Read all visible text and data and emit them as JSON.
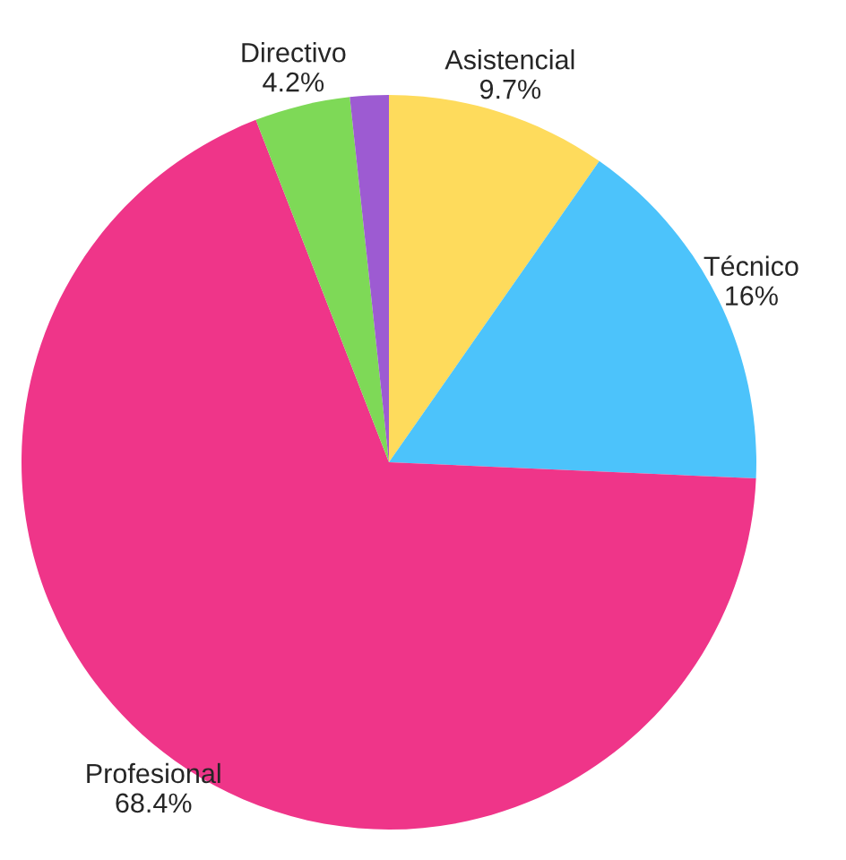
{
  "chart_data": {
    "type": "pie",
    "categories": [
      "Asistencial",
      "Técnico",
      "Profesional",
      "Directivo",
      null
    ],
    "values": [
      9.7,
      16,
      68.4,
      4.2,
      1.7
    ],
    "value_labels": [
      "9.7%",
      "16%",
      "68.4%",
      "4.2%",
      null
    ],
    "colors": [
      "#fedb5c",
      "#4cc3fb",
      "#ef3589",
      "#7ed957",
      "#9d5bd2"
    ],
    "legend": false
  }
}
